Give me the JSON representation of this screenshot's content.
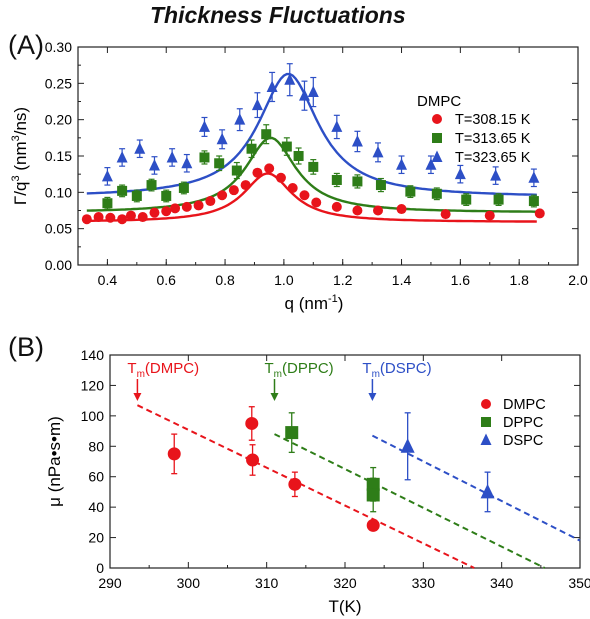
{
  "figure_title": "Thickness Fluctuations",
  "chart_data": [
    {
      "type": "scatter",
      "panel_label": "(A)",
      "xlabel": "q (nm",
      "xlabel_sup": "-1",
      "xlabel_end": ")",
      "ylabel": "Γ/q",
      "ylabel_sup1": "3",
      "ylabel_mid": " (nm",
      "ylabel_sup2": "3",
      "ylabel_end": "/ns)",
      "xlim": [
        0.3,
        2.0
      ],
      "ylim": [
        0.0,
        0.3
      ],
      "xticks": [
        0.4,
        0.6,
        0.8,
        1.0,
        1.2,
        1.4,
        1.6,
        1.8,
        2.0
      ],
      "xtick_labels": [
        "0.4",
        "0.6",
        "0.8",
        "1.0",
        "1.2",
        "1.4",
        "1.6",
        "1.8",
        "2.0"
      ],
      "yticks": [
        0.0,
        0.05,
        0.1,
        0.15,
        0.2,
        0.25,
        0.3
      ],
      "ytick_labels": [
        "0.00",
        "0.05",
        "0.10",
        "0.15",
        "0.20",
        "0.25",
        "0.30"
      ],
      "legend_title": "DMPC",
      "legend_position": "top-right",
      "series": [
        {
          "name": "T=308.15 K",
          "marker": "circle",
          "color": "#e8141b",
          "x": [
            0.33,
            0.37,
            0.41,
            0.45,
            0.48,
            0.52,
            0.56,
            0.6,
            0.63,
            0.67,
            0.71,
            0.75,
            0.79,
            0.83,
            0.87,
            0.91,
            0.95,
            0.99,
            1.03,
            1.07,
            1.11,
            1.18,
            1.25,
            1.32,
            1.4,
            1.55,
            1.7,
            1.87
          ],
          "y": [
            0.063,
            0.066,
            0.065,
            0.063,
            0.068,
            0.066,
            0.072,
            0.074,
            0.078,
            0.08,
            0.082,
            0.088,
            0.096,
            0.103,
            0.11,
            0.127,
            0.133,
            0.12,
            0.106,
            0.096,
            0.086,
            0.08,
            0.075,
            0.075,
            0.077,
            0.07,
            0.068,
            0.071
          ],
          "fit": {
            "baseline": 0.059,
            "amplitude": 0.067,
            "center": 0.945,
            "width": 0.1
          }
        },
        {
          "name": "T=313.65 K",
          "marker": "square",
          "color": "#2e7d18",
          "x": [
            0.4,
            0.45,
            0.5,
            0.55,
            0.6,
            0.66,
            0.73,
            0.78,
            0.84,
            0.89,
            0.94,
            1.01,
            1.05,
            1.1,
            1.18,
            1.25,
            1.33,
            1.43,
            1.52,
            1.62,
            1.73,
            1.85
          ],
          "y": [
            0.085,
            0.102,
            0.095,
            0.11,
            0.095,
            0.106,
            0.148,
            0.14,
            0.13,
            0.16,
            0.18,
            0.163,
            0.15,
            0.135,
            0.117,
            0.115,
            0.11,
            0.101,
            0.098,
            0.09,
            0.09,
            0.088
          ],
          "err": [
            0.008,
            0.008,
            0.008,
            0.008,
            0.008,
            0.008,
            0.009,
            0.01,
            0.011,
            0.012,
            0.013,
            0.012,
            0.011,
            0.01,
            0.009,
            0.009,
            0.009,
            0.008,
            0.008,
            0.008,
            0.008,
            0.008
          ],
          "fit": {
            "baseline": 0.072,
            "amplitude": 0.103,
            "center": 0.955,
            "width": 0.105
          }
        },
        {
          "name": "T=323.65 K",
          "marker": "triangle",
          "color": "#2d4fc6",
          "x": [
            0.4,
            0.45,
            0.51,
            0.56,
            0.62,
            0.67,
            0.73,
            0.79,
            0.85,
            0.91,
            0.96,
            1.02,
            1.07,
            1.1,
            1.18,
            1.25,
            1.32,
            1.4,
            1.5,
            1.6,
            1.72,
            1.85
          ],
          "y": [
            0.122,
            0.148,
            0.16,
            0.137,
            0.148,
            0.14,
            0.19,
            0.173,
            0.2,
            0.22,
            0.245,
            0.255,
            0.233,
            0.238,
            0.19,
            0.17,
            0.155,
            0.138,
            0.138,
            0.125,
            0.123,
            0.12
          ],
          "err": [
            0.012,
            0.012,
            0.012,
            0.012,
            0.012,
            0.012,
            0.013,
            0.013,
            0.015,
            0.017,
            0.02,
            0.022,
            0.02,
            0.02,
            0.016,
            0.014,
            0.013,
            0.012,
            0.012,
            0.012,
            0.012,
            0.012
          ],
          "fit": {
            "baseline": 0.093,
            "amplitude": 0.17,
            "center": 1.015,
            "width": 0.125
          }
        }
      ]
    },
    {
      "type": "scatter",
      "panel_label": "(B)",
      "xlabel": "T(K)",
      "ylabel": "μ (nPa•s•m)",
      "xlim": [
        290,
        350
      ],
      "ylim": [
        0,
        140
      ],
      "xticks": [
        290,
        300,
        310,
        320,
        330,
        340,
        350
      ],
      "xtick_labels": [
        "290",
        "300",
        "310",
        "320",
        "330",
        "340",
        "350"
      ],
      "yticks": [
        0,
        20,
        40,
        60,
        80,
        100,
        120,
        140
      ],
      "ytick_labels": [
        "0",
        "20",
        "40",
        "60",
        "80",
        "100",
        "120",
        "140"
      ],
      "legend_position": "right",
      "annotations": [
        {
          "text": "T",
          "sub": "m",
          "rest": "(DMPC)",
          "x": 293.5,
          "color": "#e8141b"
        },
        {
          "text": "T",
          "sub": "m",
          "rest": "(DPPC)",
          "x": 311.0,
          "color": "#2e7d18"
        },
        {
          "text": "T",
          "sub": "m",
          "rest": "(DSPC)",
          "x": 323.5,
          "color": "#2d4fc6"
        }
      ],
      "series": [
        {
          "name": "DMPC",
          "marker": "circle",
          "color": "#e8141b",
          "x": [
            298.2,
            308.1,
            308.2,
            313.6,
            323.6
          ],
          "y": [
            75,
            95,
            71,
            55,
            28
          ],
          "err": [
            13,
            11,
            10,
            8,
            3
          ],
          "trend": {
            "x": [
              293.5,
              336.5
            ],
            "y": [
              107,
              0
            ]
          }
        },
        {
          "name": "DPPC",
          "marker": "square",
          "color": "#2e7d18",
          "x": [
            313.2,
            323.6,
            323.6
          ],
          "y": [
            89,
            55,
            48
          ],
          "err": [
            13,
            11,
            11
          ],
          "trend": {
            "x": [
              311.0,
              345.5
            ],
            "y": [
              88,
              0
            ]
          }
        },
        {
          "name": "DSPC",
          "marker": "triangle",
          "color": "#2d4fc6",
          "x": [
            328.0,
            338.2
          ],
          "y": [
            80,
            50
          ],
          "err": [
            22,
            13
          ],
          "trend": {
            "x": [
              323.5,
              350.0
            ],
            "y": [
              87,
              18
            ]
          }
        }
      ]
    }
  ]
}
